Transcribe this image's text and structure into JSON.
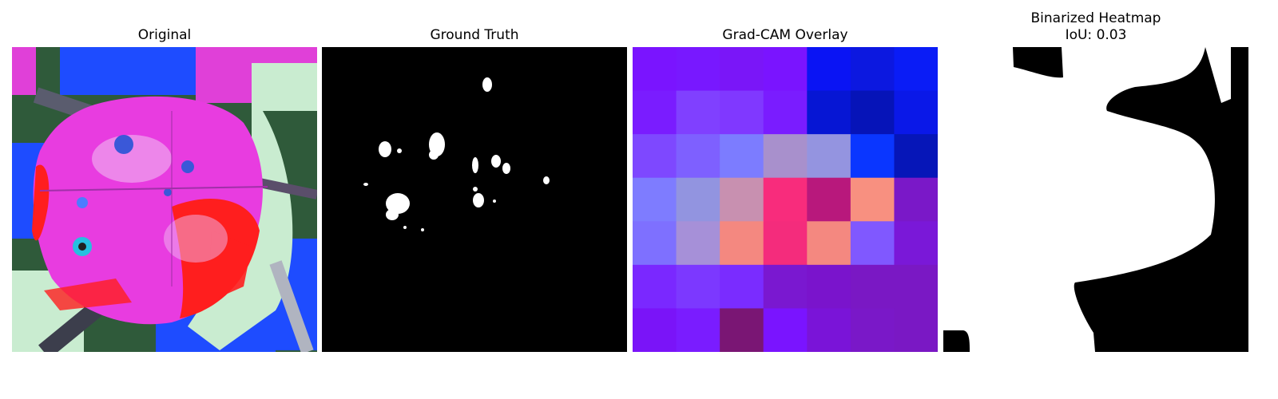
{
  "panels": [
    {
      "id": "original",
      "title": "Original"
    },
    {
      "id": "ground_truth",
      "title": "Ground Truth"
    },
    {
      "id": "gradcam",
      "title": "Grad-CAM Overlay"
    },
    {
      "id": "binarized",
      "title": "Binarized Heatmap",
      "subtitle": "IoU: 0.03"
    }
  ],
  "colors": {
    "background": "#ffffff",
    "mask_foreground": "#ffffff",
    "mask_background": "#000000",
    "leaf_magenta": "#e83ce0",
    "leaf_red": "#ff1e1e",
    "bg_green": "#2f5a3a",
    "bg_blue": "#1e4cff",
    "bg_pale": "#c9ecd0"
  },
  "gradcam_grid": [
    [
      "#7a14ff",
      "#7818ff",
      "#7a16f8",
      "#7a14ff",
      "#0a14f4",
      "#0c18e0",
      "#0a1cf6"
    ],
    [
      "#7a1cff",
      "#8040ff",
      "#8038ff",
      "#7a1cff",
      "#0616d4",
      "#0614b8",
      "#0a18e8"
    ],
    [
      "#7e48ff",
      "#7e60ff",
      "#7c7cff",
      "#a890cc",
      "#9494e0",
      "#0a36ff",
      "#0616b8"
    ],
    [
      "#7e7cff",
      "#9294e0",
      "#c890b0",
      "#f82c7c",
      "#b8187c",
      "#f89080",
      "#7a18c8"
    ],
    [
      "#7e70ff",
      "#a690d8",
      "#f48880",
      "#f42c7c",
      "#f48880",
      "#8058ff",
      "#7a18d8"
    ],
    [
      "#7a28ff",
      "#7c38ff",
      "#7a2cff",
      "#7a18d0",
      "#7a14cc",
      "#7a18c4",
      "#7a18c4"
    ],
    [
      "#7a14f8",
      "#7a1cff",
      "#7a1674",
      "#7a14ff",
      "#7a14d8",
      "#7a18c8",
      "#7a18c4"
    ]
  ]
}
